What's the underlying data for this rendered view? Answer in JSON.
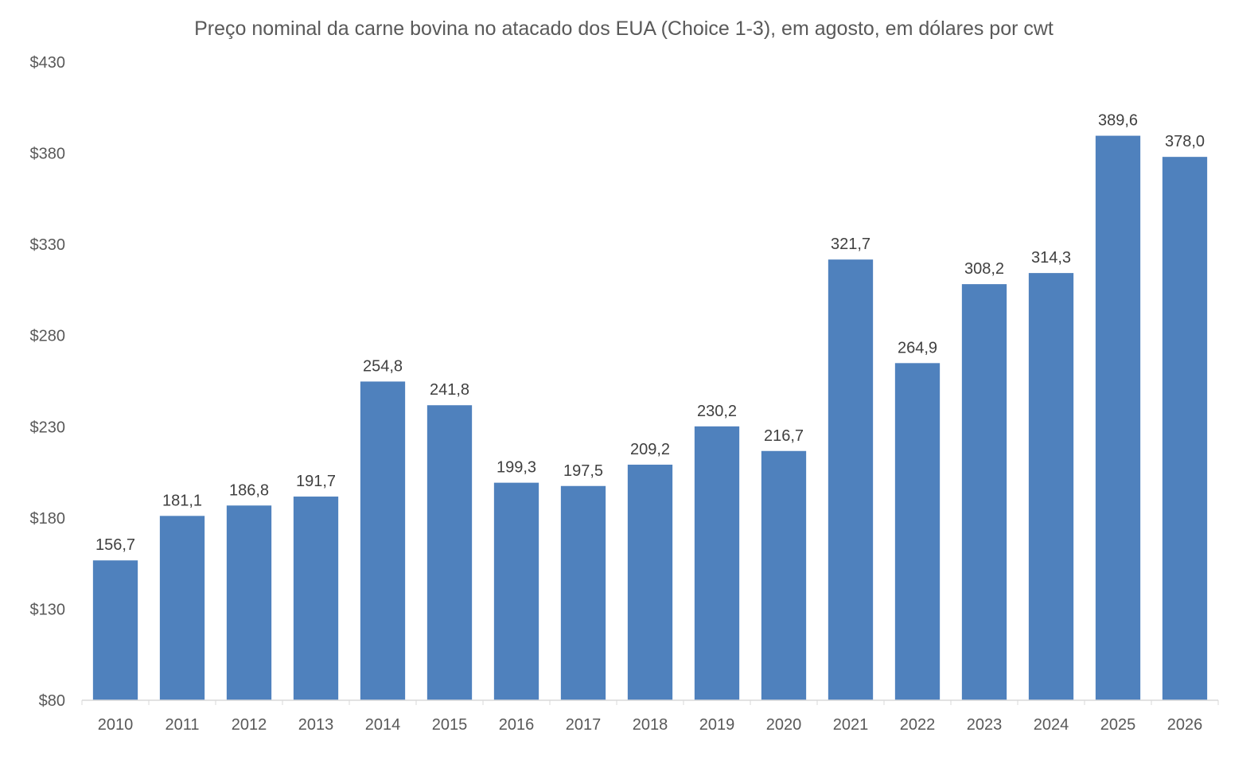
{
  "chart_data": {
    "type": "bar",
    "title": "Preço nominal da carne bovina no atacado dos EUA (Choice 1-3), em agosto, em dólares por cwt",
    "xlabel": "",
    "ylabel": "",
    "categories": [
      "2010",
      "2011",
      "2012",
      "2013",
      "2014",
      "2015",
      "2016",
      "2017",
      "2018",
      "2019",
      "2020",
      "2021",
      "2022",
      "2023",
      "2024",
      "2025",
      "2026"
    ],
    "values": [
      156.7,
      181.1,
      186.8,
      191.7,
      254.8,
      241.8,
      199.3,
      197.5,
      209.2,
      230.2,
      216.7,
      321.7,
      264.9,
      308.2,
      314.3,
      389.6,
      378.0
    ],
    "data_labels": [
      "156,7",
      "181,1",
      "186,8",
      "191,7",
      "254,8",
      "241,8",
      "199,3",
      "197,5",
      "209,2",
      "230,2",
      "216,7",
      "321,7",
      "264,9",
      "308,2",
      "314,3",
      "389,6",
      "378,0"
    ],
    "ylim": [
      80,
      430
    ],
    "yticks": [
      80,
      130,
      180,
      230,
      280,
      330,
      380,
      430
    ],
    "ytick_labels": [
      "$80",
      "$130",
      "$180",
      "$230",
      "$280",
      "$330",
      "$380",
      "$430"
    ],
    "grid": false,
    "legend": "none",
    "bar_color": "#4F81BD",
    "axis_color": "#D9D9D9"
  }
}
